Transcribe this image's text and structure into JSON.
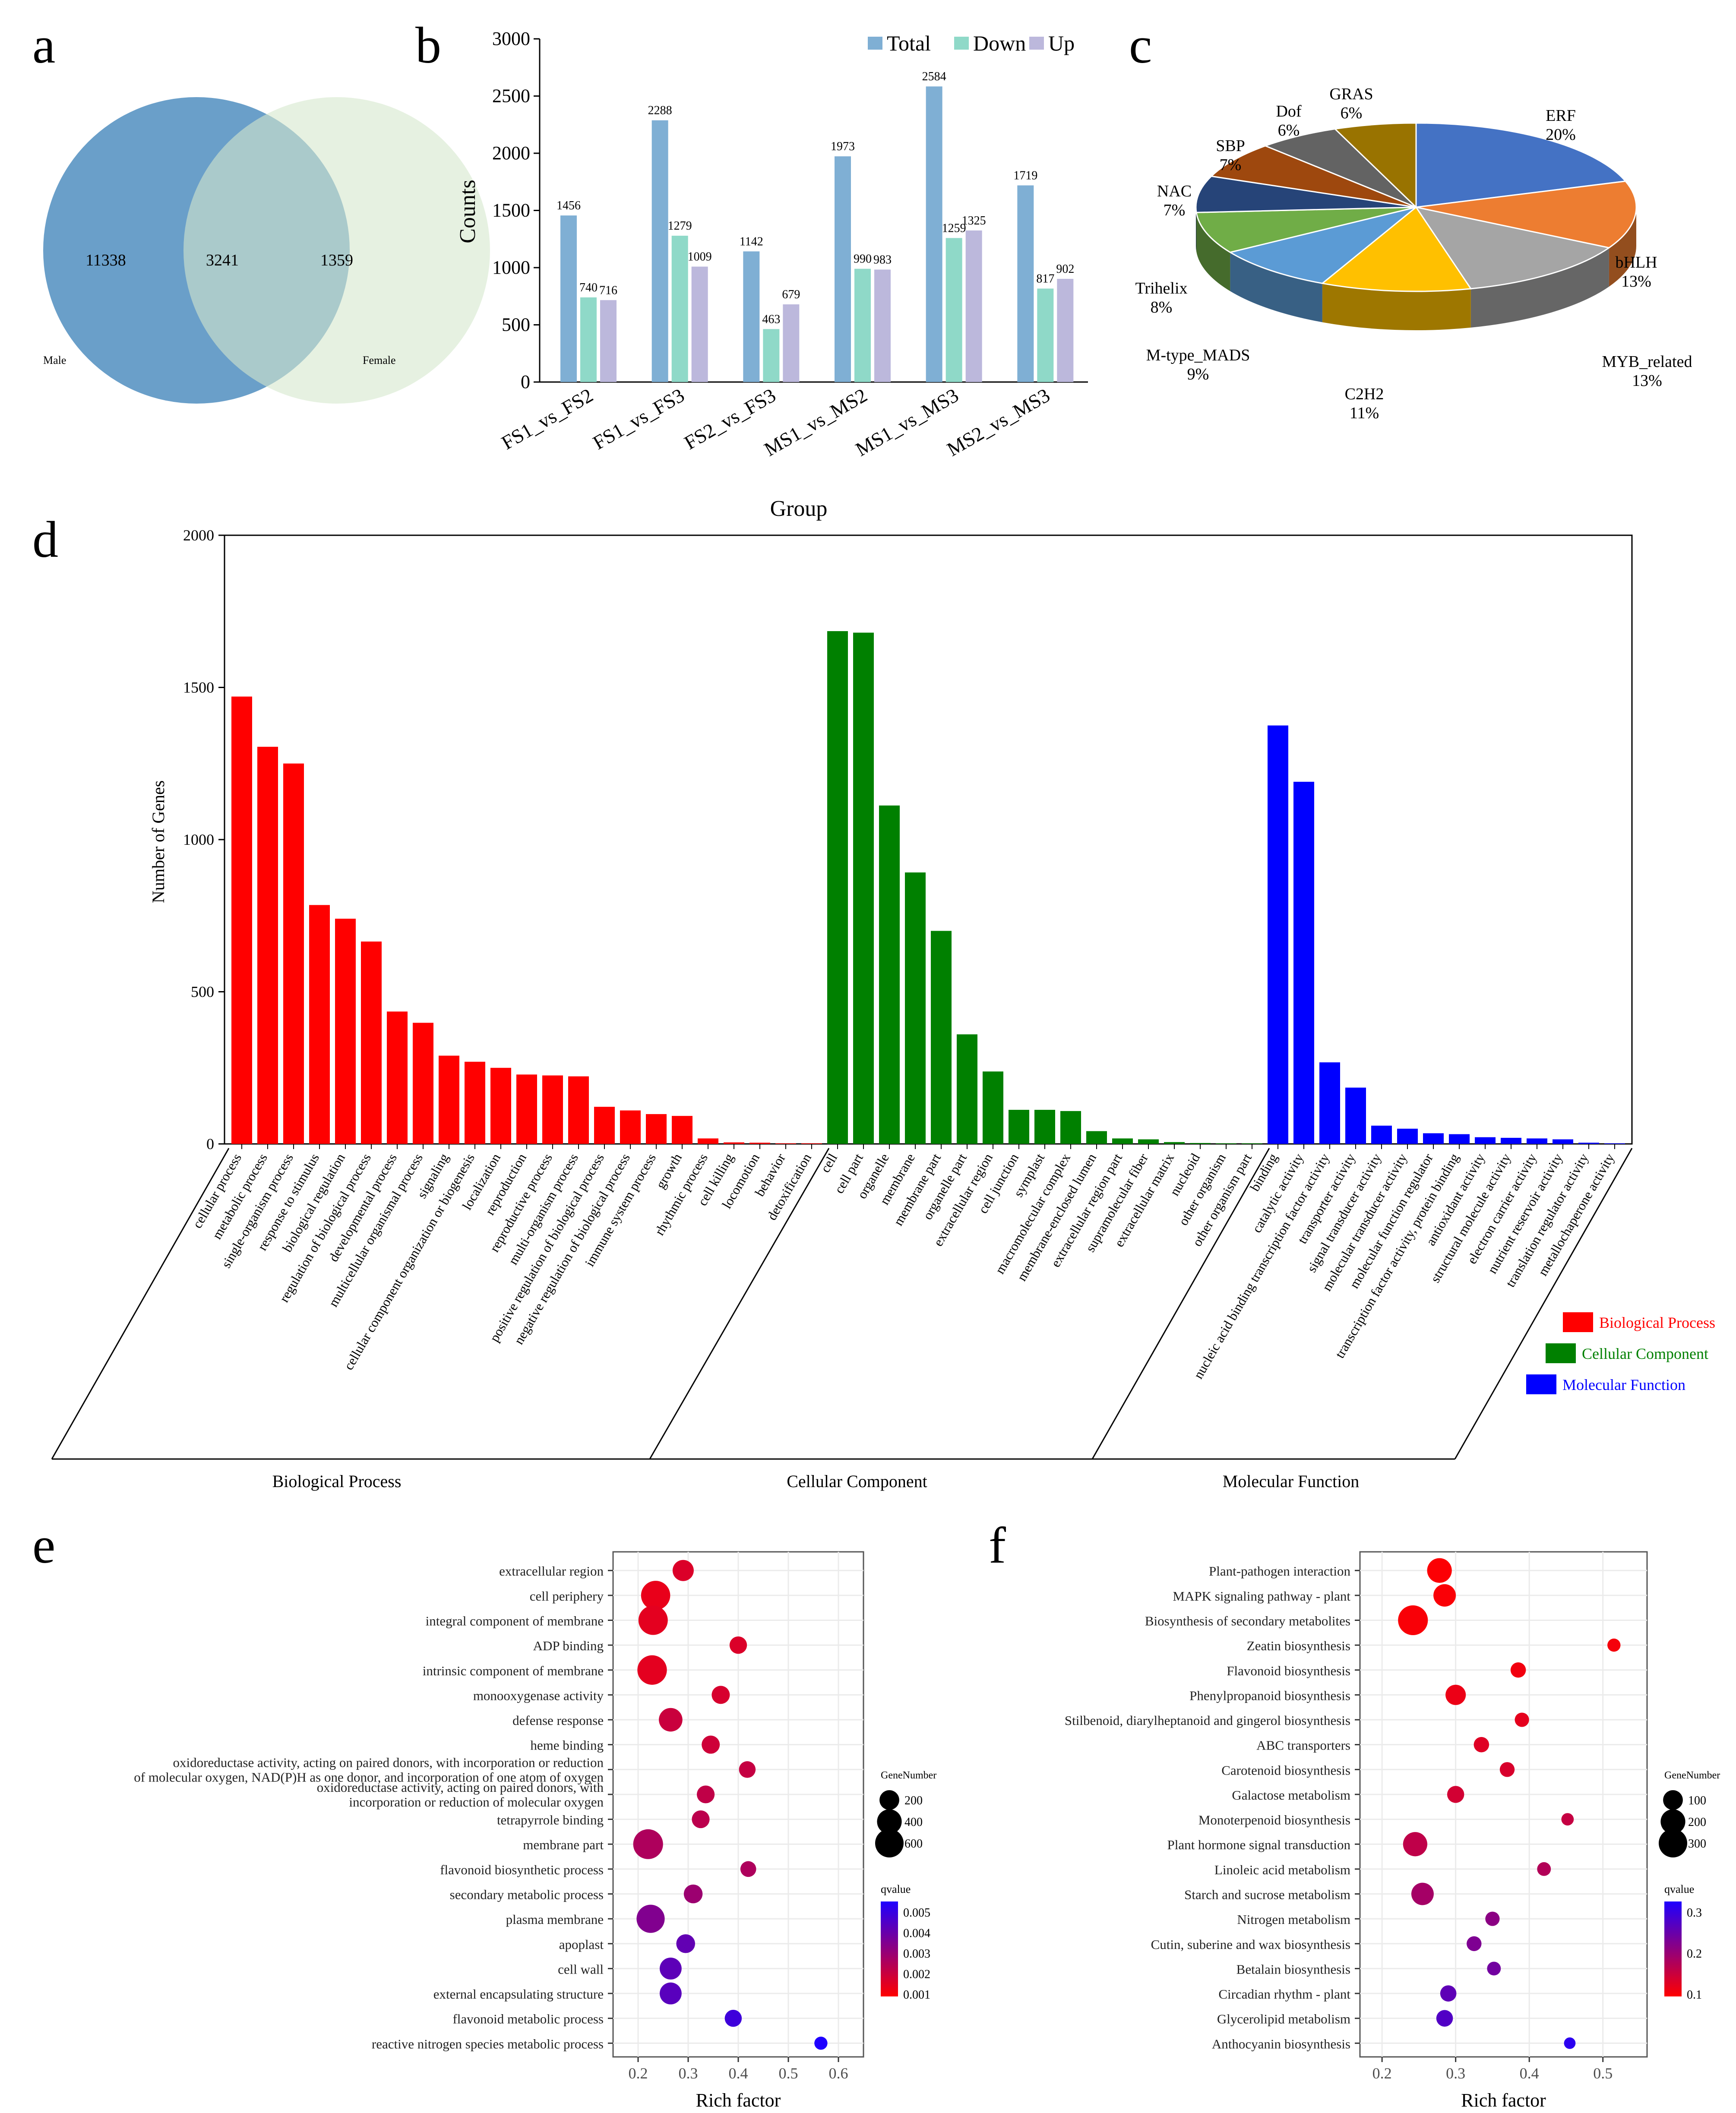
{
  "panel_letters": {
    "a": "a",
    "b": "b",
    "c": "c",
    "d": "d",
    "e": "e",
    "f": "f"
  },
  "chart_data": [
    {
      "panel": "a",
      "type": "venn",
      "sets": [
        {
          "label": "Male",
          "only": 11338,
          "color": "#6a9fc9"
        },
        {
          "label": "Female",
          "only": 1359,
          "color": "#d6e7cd"
        }
      ],
      "intersection": 3241
    },
    {
      "panel": "b",
      "type": "bar",
      "xlabel": "Group",
      "ylabel": "Counts",
      "ylim": [
        0,
        3000
      ],
      "yticks": [
        0,
        500,
        1000,
        1500,
        2000,
        2500,
        3000
      ],
      "categories": [
        "FS1_vs_FS2",
        "FS1_vs_FS3",
        "FS2_vs_FS3",
        "MS1_vs_MS2",
        "MS1_vs_MS3",
        "MS2_vs_MS3"
      ],
      "series": [
        {
          "name": "Total",
          "color": "#7fafd4",
          "values": [
            1456,
            2288,
            1142,
            1973,
            2584,
            1719
          ]
        },
        {
          "name": "Down",
          "color": "#8fd9c8",
          "values": [
            740,
            1279,
            463,
            990,
            1259,
            817
          ]
        },
        {
          "name": "Up",
          "color": "#bcb8dc",
          "values": [
            716,
            1009,
            679,
            983,
            1325,
            902
          ]
        }
      ]
    },
    {
      "panel": "c",
      "type": "pie",
      "slices": [
        {
          "label": "ERF",
          "pct_label": "20%",
          "value": 20,
          "color": "#4472c4"
        },
        {
          "label": "bHLH",
          "pct_label": "13%",
          "value": 13,
          "color": "#ed7d31"
        },
        {
          "label": "MYB_related",
          "pct_label": "13%",
          "value": 13,
          "color": "#a5a5a5"
        },
        {
          "label": "C2H2",
          "pct_label": "11%",
          "value": 11,
          "color": "#ffc000"
        },
        {
          "label": "M-type_MADS",
          "pct_label": "9%",
          "value": 9,
          "color": "#5b9bd5"
        },
        {
          "label": "Trihelix",
          "pct_label": "8%",
          "value": 8,
          "color": "#70ad47"
        },
        {
          "label": "NAC",
          "pct_label": "7%",
          "value": 7,
          "color": "#264478"
        },
        {
          "label": "SBP",
          "pct_label": "7%",
          "value": 7,
          "color": "#9e480e"
        },
        {
          "label": "Dof",
          "pct_label": "6%",
          "value": 6,
          "color": "#636363"
        },
        {
          "label": "GRAS",
          "pct_label": "6%",
          "value": 6,
          "color": "#997300"
        }
      ]
    },
    {
      "panel": "d",
      "type": "bar",
      "ylabel": "Number of Genes",
      "ylim": [
        0,
        2000
      ],
      "yticks": [
        0,
        500,
        1000,
        1500,
        2000
      ],
      "groups": [
        {
          "name": "Biological Process",
          "color": "#ff0000",
          "categories": [
            "cellular process",
            "metabolic process",
            "single-organism process",
            "response to stimulus",
            "biological regulation",
            "regulation of biological process",
            "developmental process",
            "multicellular organismal process",
            "signaling",
            "cellular component organization or biogenesis",
            "localization",
            "reproduction",
            "reproductive process",
            "multi-organism process",
            "positive regulation of biological process",
            "negative regulation of biological process",
            "immune system process",
            "growth",
            "rhythmic process",
            "cell killing",
            "locomotion",
            "behavior",
            "detoxification"
          ],
          "values": [
            1470,
            1305,
            1250,
            785,
            740,
            665,
            435,
            398,
            290,
            270,
            250,
            228,
            225,
            222,
            122,
            110,
            98,
            92,
            18,
            5,
            4,
            2,
            2
          ]
        },
        {
          "name": "Cellular Component",
          "color": "#008000",
          "categories": [
            "cell",
            "cell part",
            "organelle",
            "membrane",
            "membrane part",
            "organelle part",
            "extracellular region",
            "cell junction",
            "symplast",
            "macromolecular complex",
            "membrane-enclosed lumen",
            "extracellular region part",
            "supramolecular fiber",
            "extracellular matrix",
            "nucleoid",
            "other organism",
            "other organism part"
          ],
          "values": [
            1685,
            1680,
            1112,
            892,
            700,
            360,
            238,
            112,
            112,
            108,
            42,
            18,
            15,
            6,
            3,
            2,
            2
          ]
        },
        {
          "name": "Molecular Function",
          "color": "#0000ff",
          "categories": [
            "binding",
            "catalytic activity",
            "nucleic acid binding transcription factor activity",
            "transporter activity",
            "signal transducer activity",
            "molecular transducer activity",
            "molecular function regulator",
            "transcription factor activity, protein binding",
            "antioxidant activity",
            "structural molecule activity",
            "electron carrier activity",
            "nutrient reservoir activity",
            "translation regulator activity",
            "metallochaperone activity"
          ],
          "values": [
            1375,
            1190,
            268,
            185,
            60,
            50,
            35,
            32,
            22,
            20,
            18,
            15,
            4,
            2
          ]
        }
      ],
      "legend": [
        "Biological Process",
        "Cellular Component",
        "Molecular Function"
      ]
    },
    {
      "panel": "e",
      "type": "scatter",
      "xlabel": "Rich factor",
      "xlim": [
        0.15,
        0.65
      ],
      "xticks": [
        0.2,
        0.3,
        0.4,
        0.5,
        0.6
      ],
      "size_legend_title": "GeneNumber",
      "size_legend": [
        200,
        400,
        600
      ],
      "size_max": 600,
      "color_legend_title": "qvalue",
      "color_legend": [
        "0.005",
        "0.004",
        "0.003",
        "0.002",
        "0.001"
      ],
      "qmax": 0.005,
      "terms": [
        {
          "label": [
            "extracellular region"
          ],
          "x": 0.29,
          "genes": 250,
          "q": 0.0008
        },
        {
          "label": [
            "cell periphery"
          ],
          "x": 0.235,
          "genes": 640,
          "q": 0.0005
        },
        {
          "label": [
            "integral component of membrane"
          ],
          "x": 0.23,
          "genes": 650,
          "q": 0.0006
        },
        {
          "label": [
            "ADP binding"
          ],
          "x": 0.4,
          "genes": 130,
          "q": 0.0008
        },
        {
          "label": [
            "intrinsic component of membrane"
          ],
          "x": 0.228,
          "genes": 660,
          "q": 0.0006
        },
        {
          "label": [
            "monooxygenase activity"
          ],
          "x": 0.365,
          "genes": 150,
          "q": 0.0009
        },
        {
          "label": [
            "defense response"
          ],
          "x": 0.265,
          "genes": 350,
          "q": 0.0012
        },
        {
          "label": [
            "heme binding"
          ],
          "x": 0.345,
          "genes": 150,
          "q": 0.0011
        },
        {
          "label": [
            "oxidoreductase activity, acting on paired donors, with incorporation or reduction",
            "of molecular oxygen, NAD(P)H as one donor, and incorporation of one atom of oxygen"
          ],
          "x": 0.418,
          "genes": 110,
          "q": 0.0013
        },
        {
          "label": [
            "oxidoreductase activity, acting on paired donors, with",
            "incorporation or reduction of molecular oxygen"
          ],
          "x": 0.335,
          "genes": 140,
          "q": 0.0014
        },
        {
          "label": [
            "tetrapyrrole binding"
          ],
          "x": 0.325,
          "genes": 140,
          "q": 0.0015
        },
        {
          "label": [
            "membrane part"
          ],
          "x": 0.22,
          "genes": 680,
          "q": 0.0018
        },
        {
          "label": [
            "flavonoid biosynthetic process"
          ],
          "x": 0.42,
          "genes": 90,
          "q": 0.0018
        },
        {
          "label": [
            "secondary metabolic process"
          ],
          "x": 0.31,
          "genes": 170,
          "q": 0.0022
        },
        {
          "label": [
            "plasma membrane"
          ],
          "x": 0.225,
          "genes": 580,
          "q": 0.0028
        },
        {
          "label": [
            "apoplast"
          ],
          "x": 0.295,
          "genes": 170,
          "q": 0.0035
        },
        {
          "label": [
            "cell wall"
          ],
          "x": 0.265,
          "genes": 280,
          "q": 0.0036
        },
        {
          "label": [
            "external encapsulating structure"
          ],
          "x": 0.265,
          "genes": 280,
          "q": 0.0037
        },
        {
          "label": [
            "flavonoid metabolic process"
          ],
          "x": 0.39,
          "genes": 120,
          "q": 0.0043
        },
        {
          "label": [
            "reactive nitrogen species metabolic process"
          ],
          "x": 0.565,
          "genes": 40,
          "q": 0.005
        }
      ]
    },
    {
      "panel": "f",
      "type": "scatter",
      "xlabel": "Rich factor",
      "xlim": [
        0.17,
        0.56
      ],
      "xticks": [
        0.2,
        0.3,
        0.4,
        0.5
      ],
      "size_legend_title": "GeneNumber",
      "size_legend": [
        100,
        200,
        300
      ],
      "size_max": 300,
      "color_legend_title": "qvalue",
      "color_legend": [
        "0.3",
        "0.2",
        "0.1"
      ],
      "qmax": 0.35,
      "terms": [
        {
          "label": [
            "Plant-pathogen interaction"
          ],
          "x": 0.278,
          "genes": 200,
          "q": 0.005
        },
        {
          "label": [
            "MAPK signaling pathway - plant"
          ],
          "x": 0.285,
          "genes": 150,
          "q": 0.008
        },
        {
          "label": [
            "Biosynthesis of secondary metabolites"
          ],
          "x": 0.242,
          "genes": 340,
          "q": 0.01
        },
        {
          "label": [
            "Zeatin biosynthesis"
          ],
          "x": 0.515,
          "genes": 20,
          "q": 0.015
        },
        {
          "label": [
            "Flavonoid biosynthesis"
          ],
          "x": 0.385,
          "genes": 40,
          "q": 0.02
        },
        {
          "label": [
            "Phenylpropanoid biosynthesis"
          ],
          "x": 0.3,
          "genes": 110,
          "q": 0.03
        },
        {
          "label": [
            "Stilbenoid, diarylheptanoid and gingerol biosynthesis"
          ],
          "x": 0.39,
          "genes": 30,
          "q": 0.04
        },
        {
          "label": [
            "ABC transporters"
          ],
          "x": 0.335,
          "genes": 40,
          "q": 0.05
        },
        {
          "label": [
            "Carotenoid biosynthesis"
          ],
          "x": 0.37,
          "genes": 35,
          "q": 0.06
        },
        {
          "label": [
            "Galactose metabolism"
          ],
          "x": 0.3,
          "genes": 60,
          "q": 0.07
        },
        {
          "label": [
            "Monoterpenoid biosynthesis"
          ],
          "x": 0.452,
          "genes": 15,
          "q": 0.09
        },
        {
          "label": [
            "Plant hormone signal transduction"
          ],
          "x": 0.245,
          "genes": 190,
          "q": 0.1
        },
        {
          "label": [
            "Linoleic acid metabolism"
          ],
          "x": 0.42,
          "genes": 25,
          "q": 0.12
        },
        {
          "label": [
            "Starch and sucrose metabolism"
          ],
          "x": 0.255,
          "genes": 150,
          "q": 0.14
        },
        {
          "label": [
            "Nitrogen metabolism"
          ],
          "x": 0.35,
          "genes": 30,
          "q": 0.18
        },
        {
          "label": [
            "Cutin, suberine and wax biosynthesis"
          ],
          "x": 0.325,
          "genes": 35,
          "q": 0.2
        },
        {
          "label": [
            "Betalain biosynthesis"
          ],
          "x": 0.352,
          "genes": 25,
          "q": 0.22
        },
        {
          "label": [
            "Circadian rhythm - plant"
          ],
          "x": 0.29,
          "genes": 50,
          "q": 0.25
        },
        {
          "label": [
            "Glycerolipid metabolism"
          ],
          "x": 0.285,
          "genes": 55,
          "q": 0.27
        },
        {
          "label": [
            "Anthocyanin biosynthesis"
          ],
          "x": 0.455,
          "genes": 10,
          "q": 0.33
        }
      ]
    }
  ]
}
